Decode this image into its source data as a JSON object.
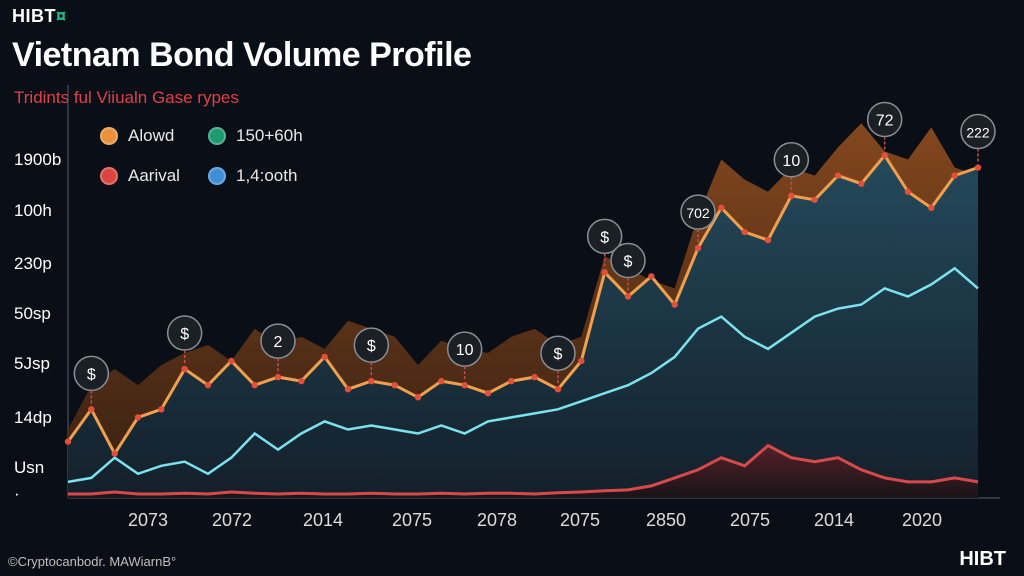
{
  "brand": {
    "logo_text": "HIBT",
    "logo_mark": "¤",
    "footer_logo": "HIBT"
  },
  "chart_data": {
    "type": "area",
    "title": "Vietnam Bond Volume Profile",
    "subtitle": "Tridints ful Viiualn Gase rypes",
    "legend": [
      {
        "label": "Alowd",
        "color": "#e8913a"
      },
      {
        "label": "150+60h",
        "color": "#1f9a6e"
      },
      {
        "label": "Aarival",
        "color": "#d9453f"
      },
      {
        "label": "1,4:ooth",
        "color": "#3e8fd8"
      }
    ],
    "y_tick_labels": [
      "1900b",
      "100h",
      "230p",
      "50sp",
      "5Jsp",
      "14dp",
      "Usn",
      "·"
    ],
    "x_tick_labels": [
      "2073",
      "2072",
      "2014",
      "2075",
      "2078",
      "2075",
      "2850",
      "2075",
      "2014",
      "2020"
    ],
    "ylim": [
      0,
      100
    ],
    "series": [
      {
        "name": "Alowd",
        "color": "#f0a04c",
        "values": [
          14,
          22,
          11,
          20,
          22,
          32,
          28,
          34,
          28,
          30,
          29,
          35,
          27,
          29,
          28,
          25,
          29,
          28,
          26,
          29,
          30,
          27,
          34,
          56,
          50,
          55,
          48,
          62,
          72,
          66,
          64,
          75,
          74,
          80,
          78,
          85,
          76,
          72,
          80,
          82
        ]
      },
      {
        "name": "Brown band",
        "color": "#6a3a1c",
        "values": [
          17,
          28,
          32,
          28,
          33,
          36,
          38,
          34,
          42,
          38,
          40,
          37,
          44,
          42,
          40,
          33,
          39,
          37,
          36,
          40,
          42,
          38,
          40,
          60,
          57,
          54,
          52,
          70,
          84,
          79,
          76,
          82,
          80,
          87,
          93,
          86,
          84,
          92,
          82,
          80
        ]
      },
      {
        "name": "1,4:ooth",
        "color": "#7be3ee",
        "values": [
          4,
          5,
          10,
          6,
          8,
          9,
          6,
          10,
          16,
          12,
          16,
          19,
          17,
          18,
          17,
          16,
          18,
          16,
          19,
          20,
          21,
          22,
          24,
          26,
          28,
          31,
          35,
          42,
          45,
          40,
          37,
          41,
          45,
          47,
          48,
          52,
          50,
          53,
          57,
          52
        ]
      },
      {
        "name": "Aarival",
        "color": "#d84a4a",
        "values": [
          1,
          1,
          1.5,
          1,
          1,
          1.2,
          1,
          1.5,
          1.2,
          1,
          1.2,
          1,
          1,
          1.2,
          1,
          1,
          1.2,
          1,
          1.2,
          1.2,
          1,
          1.3,
          1.5,
          1.8,
          2,
          3,
          5,
          7,
          10,
          8,
          13,
          10,
          9,
          10,
          7,
          5,
          4,
          4,
          5,
          4
        ]
      }
    ],
    "annotations": [
      {
        "label": "$",
        "index": 1
      },
      {
        "label": "$",
        "index": 5
      },
      {
        "label": "2",
        "index": 9
      },
      {
        "label": "$",
        "index": 13
      },
      {
        "label": "10",
        "index": 17
      },
      {
        "label": "$",
        "index": 21
      },
      {
        "label": "$",
        "index": 23
      },
      {
        "label": "$",
        "index": 24
      },
      {
        "label": "702",
        "index": 27
      },
      {
        "label": "10",
        "index": 31
      },
      {
        "label": "72",
        "index": 35
      },
      {
        "label": "222",
        "index": 39
      }
    ]
  },
  "footer": {
    "source": "©Cryptocanbodr. MAWiarnΒ°"
  }
}
